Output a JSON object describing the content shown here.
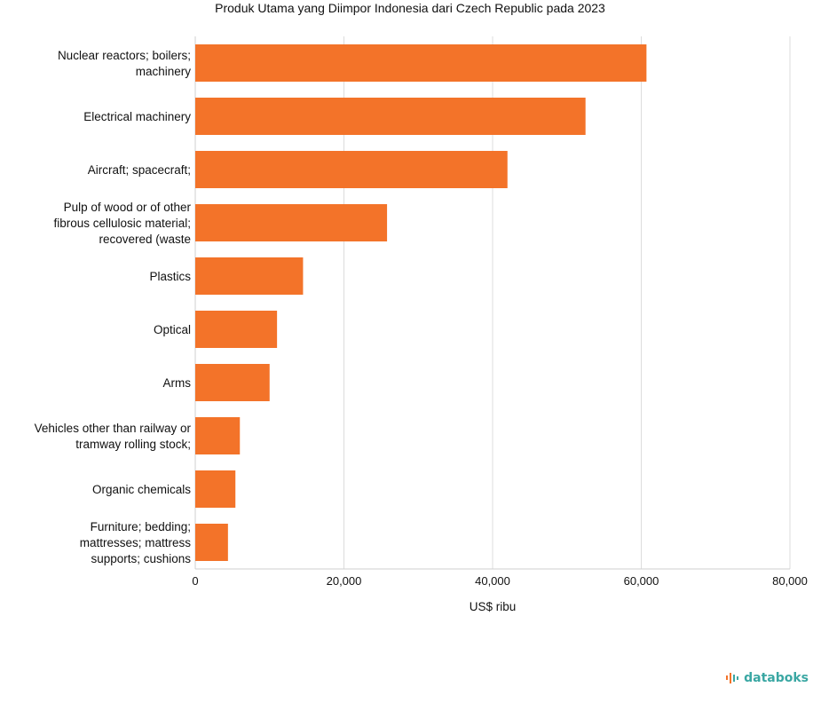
{
  "chart_data": {
    "type": "bar",
    "orientation": "horizontal",
    "title": "Produk Utama yang Diimpor Indonesia dari Czech Republic pada 2023",
    "xlabel": "US$ ribu",
    "ylabel": "",
    "xlim": [
      0,
      80000
    ],
    "xticks": [
      0,
      20000,
      40000,
      60000,
      80000
    ],
    "xtick_labels": [
      "0",
      "20,000",
      "40,000",
      "60,000",
      "80,000"
    ],
    "grid": true,
    "categories": [
      [
        "Nuclear reactors; boilers;",
        "machinery"
      ],
      [
        "Electrical machinery"
      ],
      [
        "Aircraft; spacecraft;"
      ],
      [
        "Pulp of wood or of other",
        "fibrous cellulosic material;",
        "recovered (waste"
      ],
      [
        "Plastics"
      ],
      [
        "Optical"
      ],
      [
        "Arms"
      ],
      [
        "Vehicles other than railway or",
        "tramway rolling stock;"
      ],
      [
        "Organic chemicals"
      ],
      [
        "Furniture; bedding;",
        "mattresses; mattress",
        "supports; cushions"
      ]
    ],
    "values": [
      60700,
      52500,
      42000,
      25800,
      14500,
      11000,
      10000,
      6000,
      5400,
      4400
    ],
    "bar_color": "#f37329"
  },
  "brand": {
    "name": "databoks",
    "color": "#3aa7a3",
    "accent": "#f37329"
  }
}
